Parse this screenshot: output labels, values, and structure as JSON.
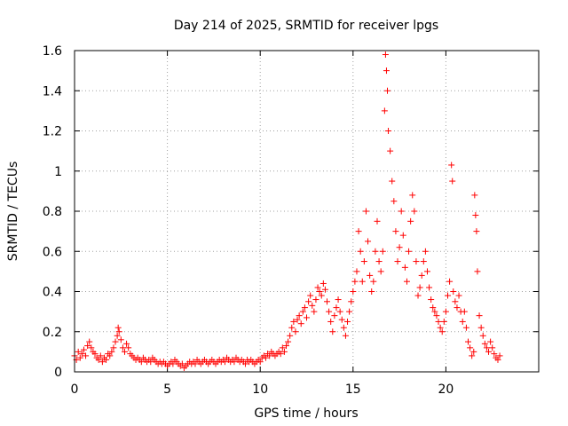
{
  "chart_data": {
    "type": "scatter",
    "title": "Day 214 of 2025, SRMTID for receiver lpgs",
    "xlabel": "GPS time / hours",
    "ylabel": "SRMTID / TECUs",
    "xlim": [
      0,
      25
    ],
    "ylim": [
      0,
      1.6
    ],
    "xticks": [
      0,
      5,
      10,
      15,
      20
    ],
    "xtick_labels": [
      "0",
      "5",
      "10",
      "15",
      "20"
    ],
    "yticks": [
      0,
      0.2,
      0.4,
      0.6,
      0.8,
      1.0,
      1.2,
      1.4,
      1.6
    ],
    "ytick_labels": [
      "0",
      "0.2",
      "0.4",
      "0.6",
      "0.8",
      "1",
      "1.2",
      "1.4",
      "1.6"
    ],
    "grid": true,
    "marker": "plus",
    "color": "#ff0000",
    "series": [
      {
        "name": "SRMTID",
        "points": [
          [
            0.0,
            0.08
          ],
          [
            0.1,
            0.06
          ],
          [
            0.2,
            0.1
          ],
          [
            0.3,
            0.07
          ],
          [
            0.4,
            0.09
          ],
          [
            0.5,
            0.11
          ],
          [
            0.6,
            0.08
          ],
          [
            0.7,
            0.13
          ],
          [
            0.8,
            0.15
          ],
          [
            0.9,
            0.12
          ],
          [
            1.0,
            0.1
          ],
          [
            1.1,
            0.09
          ],
          [
            1.2,
            0.07
          ],
          [
            1.3,
            0.06
          ],
          [
            1.4,
            0.08
          ],
          [
            1.5,
            0.05
          ],
          [
            1.6,
            0.07
          ],
          [
            1.7,
            0.06
          ],
          [
            1.8,
            0.09
          ],
          [
            1.9,
            0.08
          ],
          [
            2.0,
            0.1
          ],
          [
            2.1,
            0.12
          ],
          [
            2.2,
            0.15
          ],
          [
            2.3,
            0.18
          ],
          [
            2.35,
            0.22
          ],
          [
            2.4,
            0.2
          ],
          [
            2.5,
            0.16
          ],
          [
            2.6,
            0.12
          ],
          [
            2.7,
            0.1
          ],
          [
            2.8,
            0.14
          ],
          [
            2.9,
            0.12
          ],
          [
            3.0,
            0.09
          ],
          [
            3.1,
            0.08
          ],
          [
            3.2,
            0.07
          ],
          [
            3.3,
            0.06
          ],
          [
            3.4,
            0.07
          ],
          [
            3.5,
            0.06
          ],
          [
            3.6,
            0.05
          ],
          [
            3.7,
            0.07
          ],
          [
            3.8,
            0.06
          ],
          [
            3.9,
            0.05
          ],
          [
            4.0,
            0.06
          ],
          [
            4.1,
            0.05
          ],
          [
            4.2,
            0.07
          ],
          [
            4.3,
            0.06
          ],
          [
            4.4,
            0.05
          ],
          [
            4.5,
            0.04
          ],
          [
            4.6,
            0.05
          ],
          [
            4.7,
            0.04
          ],
          [
            4.8,
            0.05
          ],
          [
            4.9,
            0.04
          ],
          [
            5.0,
            0.03
          ],
          [
            5.1,
            0.04
          ],
          [
            5.2,
            0.05
          ],
          [
            5.3,
            0.04
          ],
          [
            5.4,
            0.06
          ],
          [
            5.5,
            0.05
          ],
          [
            5.6,
            0.04
          ],
          [
            5.7,
            0.03
          ],
          [
            5.8,
            0.04
          ],
          [
            5.9,
            0.02
          ],
          [
            6.0,
            0.03
          ],
          [
            6.1,
            0.04
          ],
          [
            6.2,
            0.05
          ],
          [
            6.3,
            0.04
          ],
          [
            6.4,
            0.05
          ],
          [
            6.5,
            0.04
          ],
          [
            6.6,
            0.06
          ],
          [
            6.7,
            0.05
          ],
          [
            6.8,
            0.04
          ],
          [
            6.9,
            0.05
          ],
          [
            7.0,
            0.06
          ],
          [
            7.1,
            0.05
          ],
          [
            7.2,
            0.04
          ],
          [
            7.3,
            0.05
          ],
          [
            7.4,
            0.06
          ],
          [
            7.5,
            0.05
          ],
          [
            7.6,
            0.04
          ],
          [
            7.7,
            0.05
          ],
          [
            7.8,
            0.06
          ],
          [
            7.9,
            0.05
          ],
          [
            8.0,
            0.06
          ],
          [
            8.1,
            0.05
          ],
          [
            8.2,
            0.07
          ],
          [
            8.3,
            0.06
          ],
          [
            8.4,
            0.05
          ],
          [
            8.5,
            0.06
          ],
          [
            8.6,
            0.05
          ],
          [
            8.7,
            0.07
          ],
          [
            8.8,
            0.06
          ],
          [
            8.9,
            0.05
          ],
          [
            9.0,
            0.06
          ],
          [
            9.1,
            0.05
          ],
          [
            9.2,
            0.04
          ],
          [
            9.3,
            0.06
          ],
          [
            9.4,
            0.05
          ],
          [
            9.5,
            0.06
          ],
          [
            9.6,
            0.05
          ],
          [
            9.7,
            0.04
          ],
          [
            9.8,
            0.05
          ],
          [
            9.9,
            0.06
          ],
          [
            10.0,
            0.05
          ],
          [
            10.1,
            0.07
          ],
          [
            10.2,
            0.08
          ],
          [
            10.3,
            0.07
          ],
          [
            10.4,
            0.09
          ],
          [
            10.5,
            0.08
          ],
          [
            10.6,
            0.1
          ],
          [
            10.7,
            0.09
          ],
          [
            10.8,
            0.08
          ],
          [
            10.9,
            0.09
          ],
          [
            11.0,
            0.1
          ],
          [
            11.1,
            0.09
          ],
          [
            11.2,
            0.12
          ],
          [
            11.3,
            0.1
          ],
          [
            11.4,
            0.13
          ],
          [
            11.5,
            0.15
          ],
          [
            11.6,
            0.18
          ],
          [
            11.7,
            0.22
          ],
          [
            11.8,
            0.25
          ],
          [
            11.9,
            0.2
          ],
          [
            12.0,
            0.26
          ],
          [
            12.1,
            0.28
          ],
          [
            12.2,
            0.24
          ],
          [
            12.3,
            0.3
          ],
          [
            12.4,
            0.32
          ],
          [
            12.5,
            0.27
          ],
          [
            12.6,
            0.35
          ],
          [
            12.7,
            0.38
          ],
          [
            12.8,
            0.33
          ],
          [
            12.9,
            0.3
          ],
          [
            13.0,
            0.36
          ],
          [
            13.1,
            0.42
          ],
          [
            13.2,
            0.4
          ],
          [
            13.3,
            0.38
          ],
          [
            13.4,
            0.44
          ],
          [
            13.5,
            0.41
          ],
          [
            13.6,
            0.35
          ],
          [
            13.7,
            0.3
          ],
          [
            13.8,
            0.25
          ],
          [
            13.9,
            0.2
          ],
          [
            14.0,
            0.28
          ],
          [
            14.1,
            0.32
          ],
          [
            14.2,
            0.36
          ],
          [
            14.3,
            0.3
          ],
          [
            14.4,
            0.26
          ],
          [
            14.5,
            0.22
          ],
          [
            14.6,
            0.18
          ],
          [
            14.7,
            0.25
          ],
          [
            14.8,
            0.3
          ],
          [
            14.9,
            0.35
          ],
          [
            15.0,
            0.4
          ],
          [
            15.1,
            0.45
          ],
          [
            15.2,
            0.5
          ],
          [
            15.3,
            0.7
          ],
          [
            15.4,
            0.6
          ],
          [
            15.5,
            0.45
          ],
          [
            15.6,
            0.55
          ],
          [
            15.7,
            0.8
          ],
          [
            15.8,
            0.65
          ],
          [
            15.9,
            0.48
          ],
          [
            16.0,
            0.4
          ],
          [
            16.1,
            0.45
          ],
          [
            16.2,
            0.6
          ],
          [
            16.3,
            0.75
          ],
          [
            16.4,
            0.55
          ],
          [
            16.5,
            0.5
          ],
          [
            16.6,
            0.6
          ],
          [
            16.7,
            1.3
          ],
          [
            16.75,
            1.58
          ],
          [
            16.8,
            1.5
          ],
          [
            16.85,
            1.4
          ],
          [
            16.9,
            1.2
          ],
          [
            17.0,
            1.1
          ],
          [
            17.1,
            0.95
          ],
          [
            17.2,
            0.85
          ],
          [
            17.3,
            0.7
          ],
          [
            17.4,
            0.55
          ],
          [
            17.5,
            0.62
          ],
          [
            17.6,
            0.8
          ],
          [
            17.7,
            0.68
          ],
          [
            17.8,
            0.52
          ],
          [
            17.9,
            0.45
          ],
          [
            18.0,
            0.6
          ],
          [
            18.1,
            0.75
          ],
          [
            18.2,
            0.88
          ],
          [
            18.3,
            0.8
          ],
          [
            18.4,
            0.55
          ],
          [
            18.5,
            0.38
          ],
          [
            18.6,
            0.42
          ],
          [
            18.7,
            0.48
          ],
          [
            18.8,
            0.55
          ],
          [
            18.9,
            0.6
          ],
          [
            19.0,
            0.5
          ],
          [
            19.1,
            0.42
          ],
          [
            19.2,
            0.36
          ],
          [
            19.3,
            0.32
          ],
          [
            19.4,
            0.3
          ],
          [
            19.5,
            0.28
          ],
          [
            19.6,
            0.25
          ],
          [
            19.7,
            0.22
          ],
          [
            19.8,
            0.2
          ],
          [
            19.9,
            0.25
          ],
          [
            20.0,
            0.3
          ],
          [
            20.1,
            0.38
          ],
          [
            20.2,
            0.45
          ],
          [
            20.3,
            1.03
          ],
          [
            20.35,
            0.95
          ],
          [
            20.4,
            0.4
          ],
          [
            20.5,
            0.35
          ],
          [
            20.6,
            0.32
          ],
          [
            20.7,
            0.38
          ],
          [
            20.8,
            0.3
          ],
          [
            20.9,
            0.25
          ],
          [
            21.0,
            0.3
          ],
          [
            21.1,
            0.22
          ],
          [
            21.2,
            0.15
          ],
          [
            21.3,
            0.12
          ],
          [
            21.4,
            0.08
          ],
          [
            21.5,
            0.1
          ],
          [
            21.55,
            0.88
          ],
          [
            21.6,
            0.78
          ],
          [
            21.65,
            0.7
          ],
          [
            21.7,
            0.5
          ],
          [
            21.8,
            0.28
          ],
          [
            21.9,
            0.22
          ],
          [
            22.0,
            0.18
          ],
          [
            22.1,
            0.14
          ],
          [
            22.2,
            0.12
          ],
          [
            22.3,
            0.1
          ],
          [
            22.4,
            0.15
          ],
          [
            22.5,
            0.12
          ],
          [
            22.6,
            0.09
          ],
          [
            22.7,
            0.07
          ],
          [
            22.8,
            0.06
          ],
          [
            22.9,
            0.08
          ]
        ]
      }
    ]
  }
}
